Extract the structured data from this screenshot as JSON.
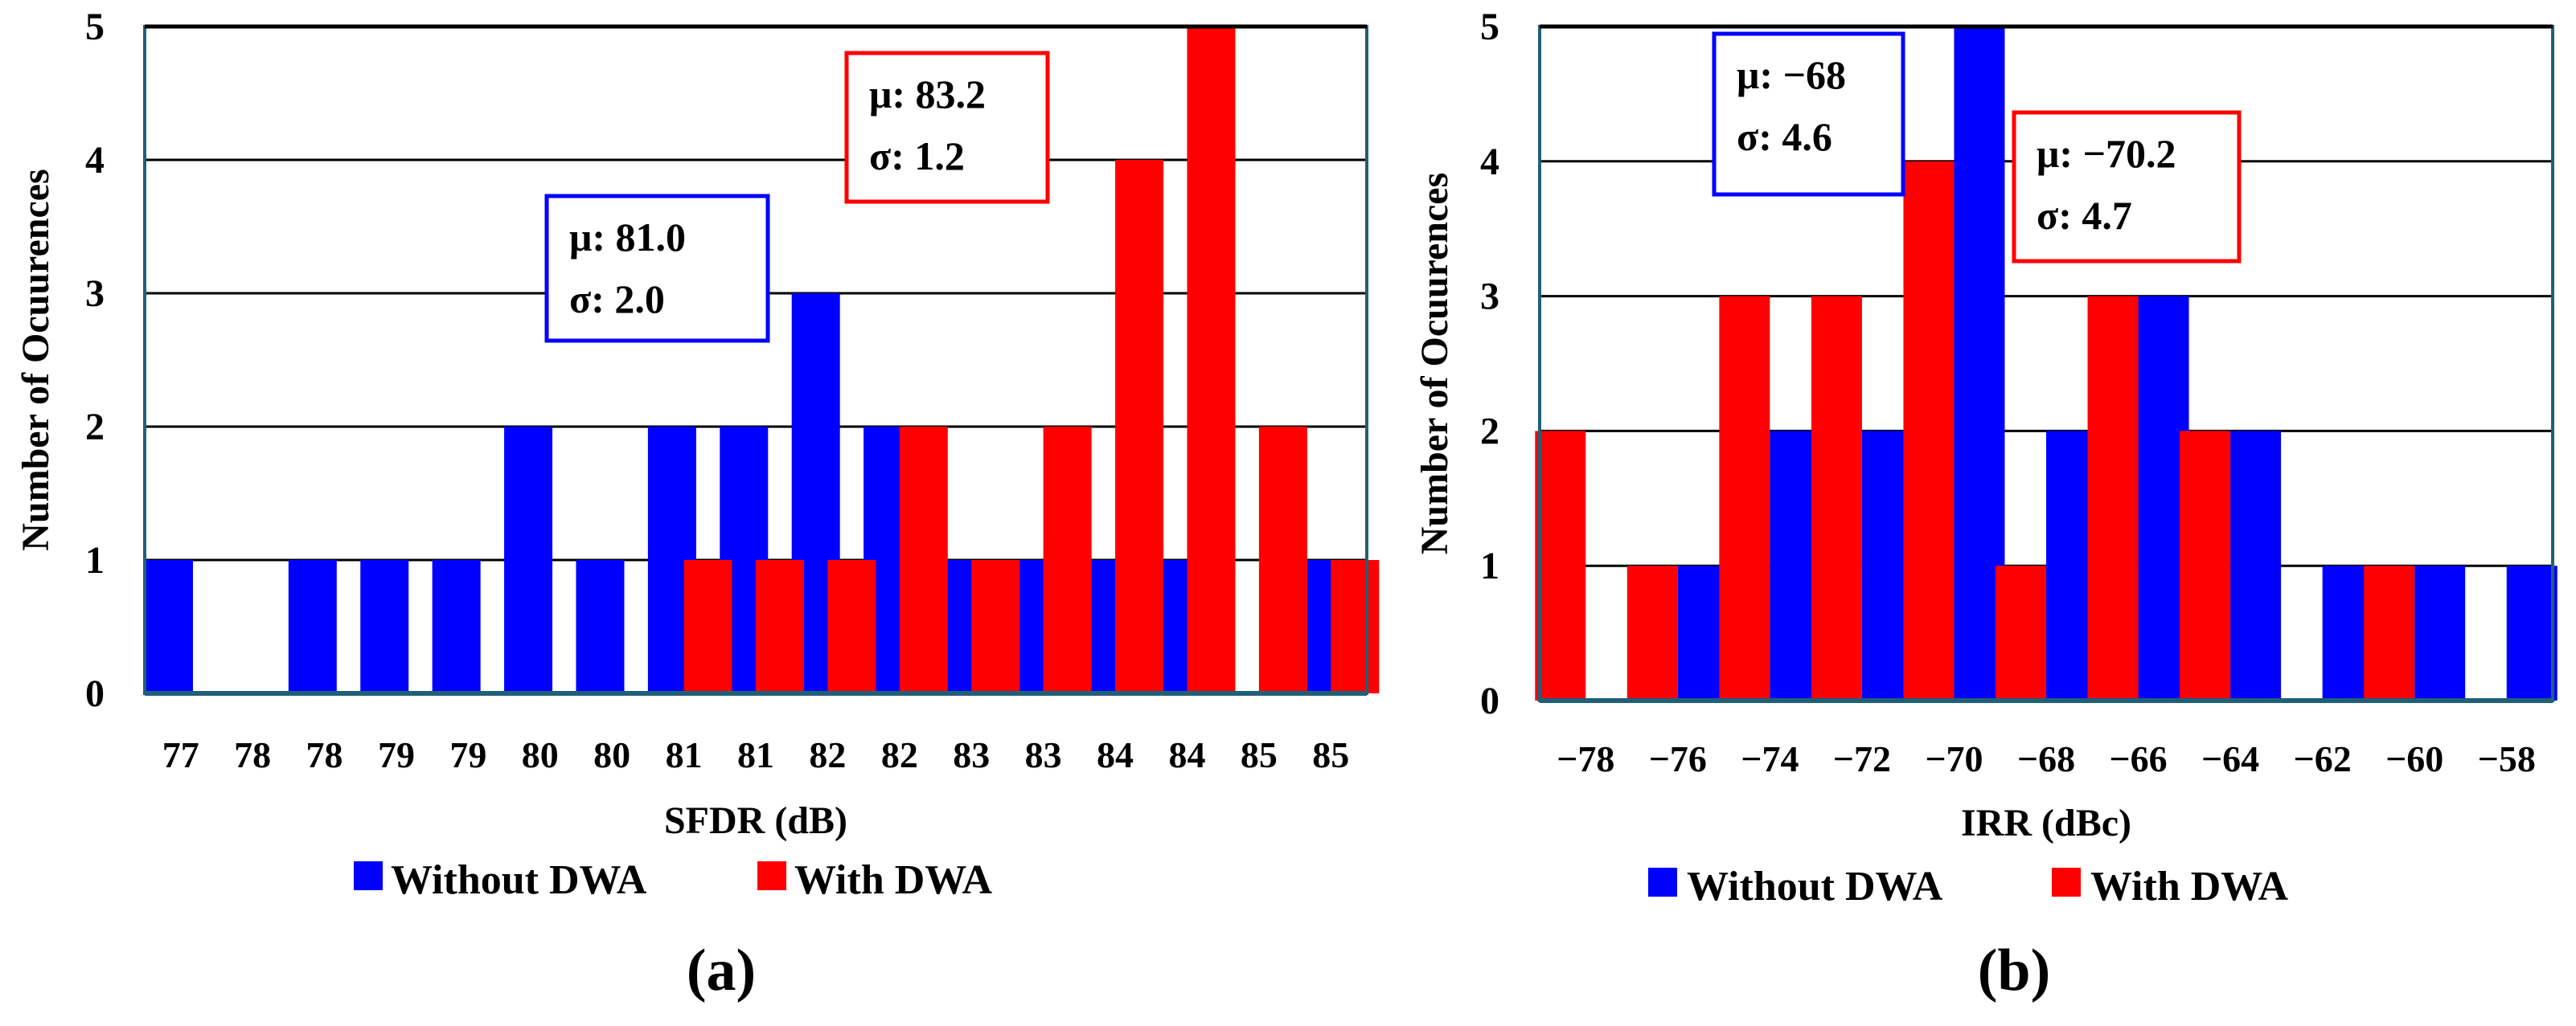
{
  "figure": {
    "colors": {
      "without_dwa": "#0000FF",
      "with_dwa": "#FF0000",
      "frame": "#1F6078",
      "grid": "#000000"
    }
  },
  "chart_data": [
    {
      "type": "bar",
      "panel_label": "(a)",
      "xlabel": "SFDR (dB)",
      "ylabel": "Number of Ocuurences",
      "ylim": [
        0,
        5
      ],
      "yticks": [
        "0",
        "1",
        "2",
        "3",
        "4",
        "5"
      ],
      "grid": true,
      "legend_placement": "bottom",
      "categories": [
        "77",
        "78",
        "78",
        "79",
        "79",
        "80",
        "80",
        "81",
        "81",
        "82",
        "82",
        "83",
        "83",
        "84",
        "84",
        "85",
        "85"
      ],
      "series": [
        {
          "name": "Without DWA",
          "color": "#0000FF",
          "values": [
            1,
            0,
            1,
            1,
            1,
            2,
            1,
            2,
            2,
            3,
            2,
            1,
            1,
            1,
            1,
            0,
            1
          ]
        },
        {
          "name": "With DWA",
          "color": "#FF0000",
          "values": [
            0,
            0,
            0,
            0,
            0,
            0,
            0,
            1,
            1,
            1,
            2,
            1,
            2,
            4,
            5,
            2,
            1
          ]
        }
      ],
      "annotations": [
        {
          "series": "Without DWA",
          "color": "#0000FF",
          "mu": "μ: 81.0",
          "sigma": "σ: 2.0"
        },
        {
          "series": "With DWA",
          "color": "#FF0000",
          "mu": "μ: 83.2",
          "sigma": "σ: 1.2"
        }
      ]
    },
    {
      "type": "bar",
      "panel_label": "(b)",
      "xlabel": "IRR (dBc)",
      "ylabel": "Number of Ocuurences",
      "ylim": [
        0,
        5
      ],
      "yticks": [
        "0",
        "1",
        "2",
        "3",
        "4",
        "5"
      ],
      "grid": true,
      "legend_placement": "bottom",
      "categories": [
        "−78",
        "−76",
        "−74",
        "−72",
        "−70",
        "−68",
        "−66",
        "−64",
        "−62",
        "−60",
        "−58"
      ],
      "series": [
        {
          "name": "Without DWA",
          "color": "#0000FF",
          "values": [
            0,
            1,
            2,
            2,
            5,
            2,
            3,
            2,
            1,
            1,
            1
          ]
        },
        {
          "name": "With DWA",
          "color": "#FF0000",
          "values": [
            2,
            1,
            3,
            3,
            4,
            1,
            3,
            2,
            0,
            1,
            0
          ]
        }
      ],
      "annotations": [
        {
          "series": "Without DWA",
          "color": "#0000FF",
          "mu": "μ: −68",
          "sigma": "σ: 4.6"
        },
        {
          "series": "With DWA",
          "color": "#FF0000",
          "mu": "μ: −70.2",
          "sigma": "σ: 4.7"
        }
      ]
    }
  ]
}
